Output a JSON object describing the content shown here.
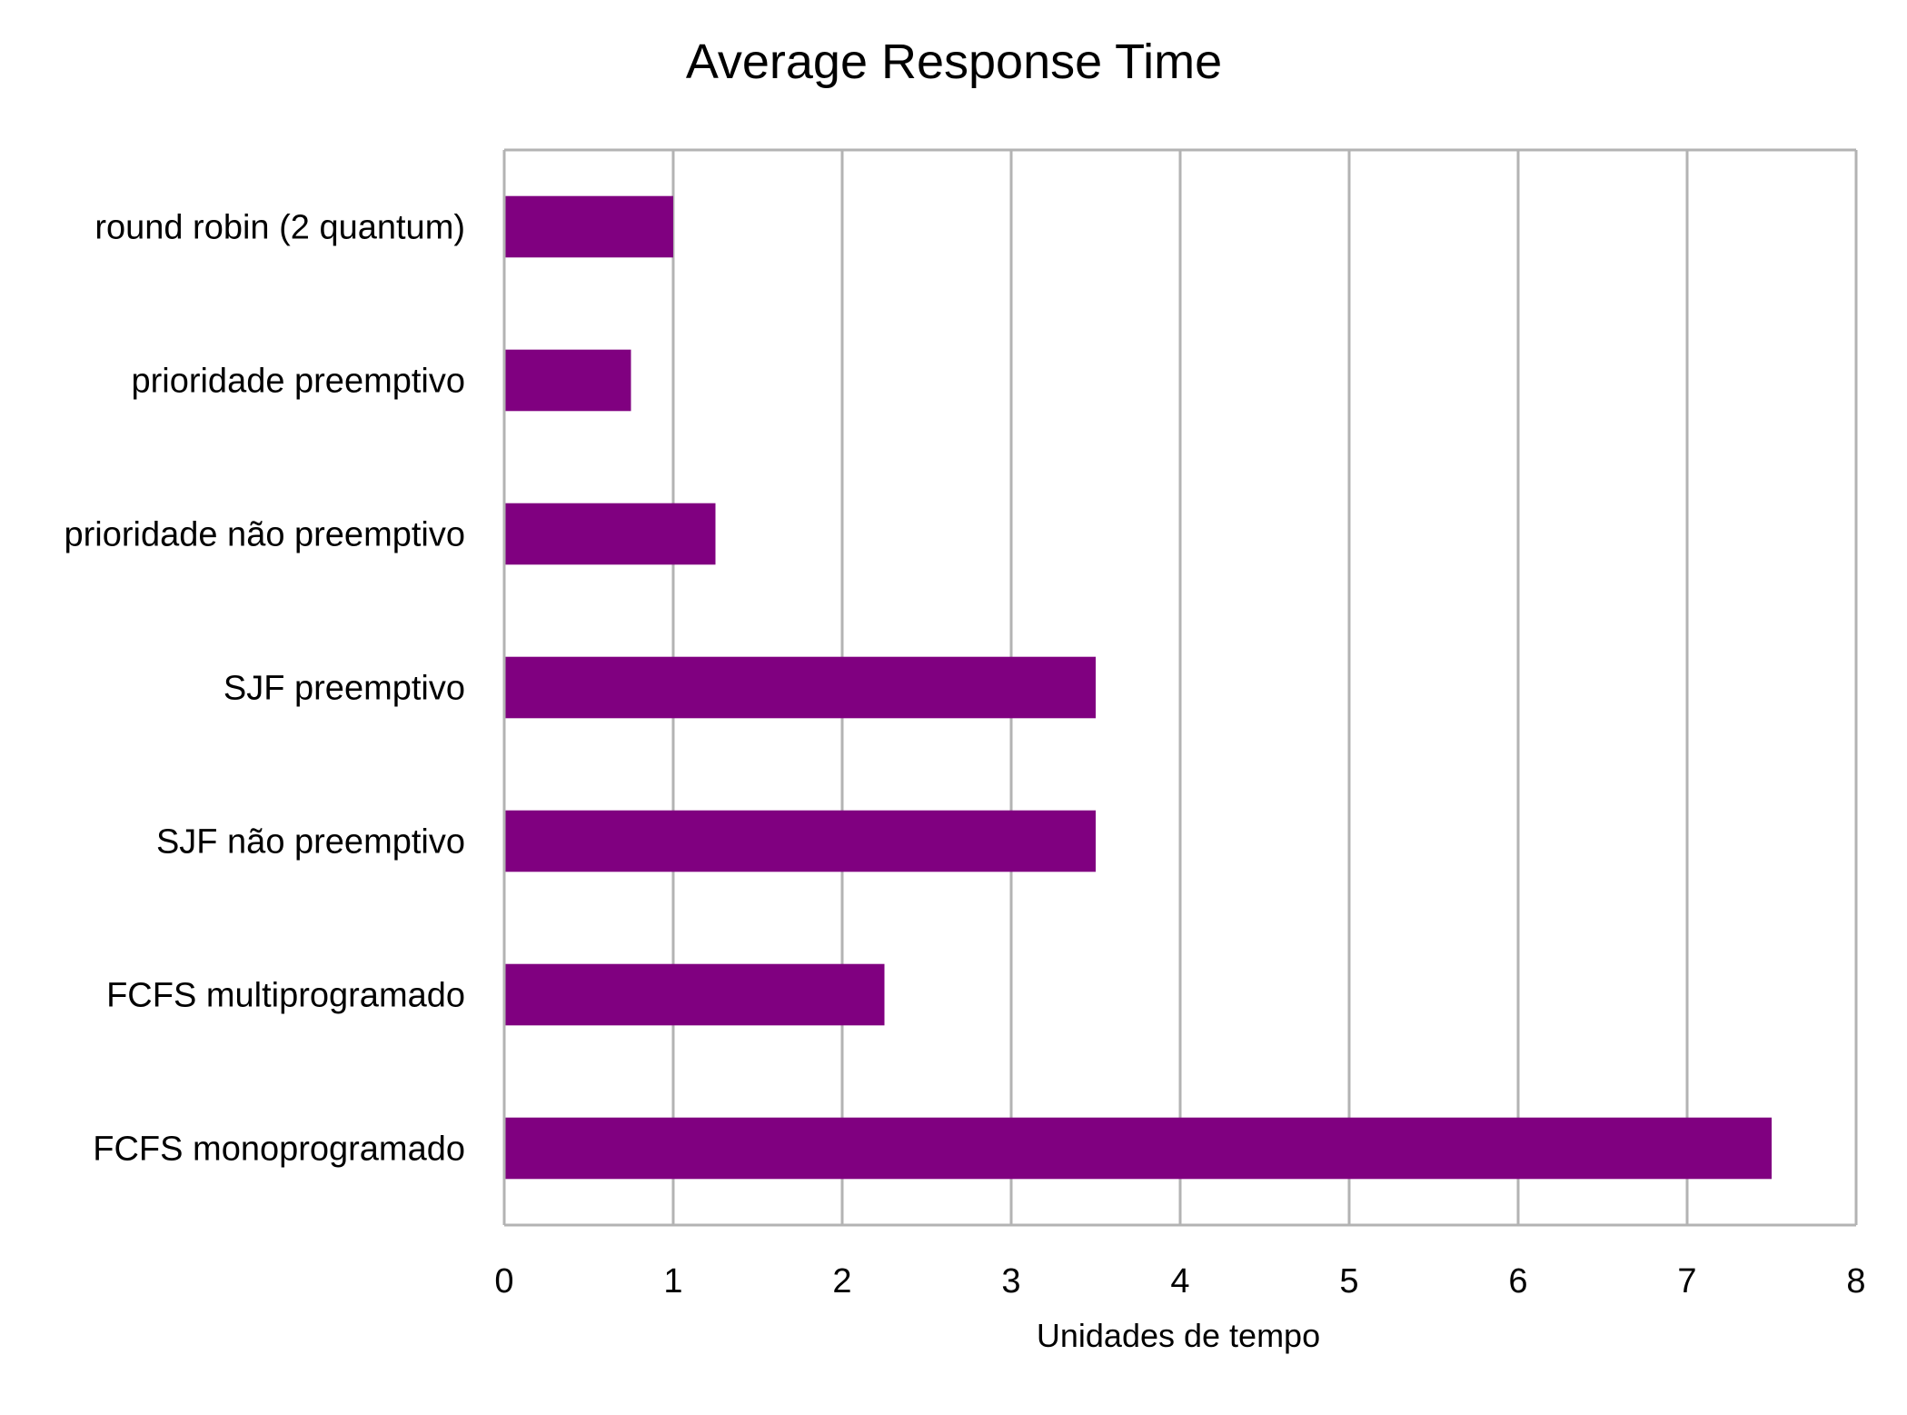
{
  "chart_data": {
    "type": "bar",
    "orientation": "horizontal",
    "title": "Average Response Time",
    "xlabel": "Unidades de tempo",
    "ylabel": "",
    "categories": [
      "round robin (2 quantum)",
      "prioridade preemptivo",
      "prioridade não preemptivo",
      "SJF preemptivo",
      "SJF não preemptivo",
      "FCFS multiprogramado",
      "FCFS monoprogramado"
    ],
    "values": [
      1,
      0.75,
      1.25,
      3.5,
      3.5,
      2.25,
      7.5
    ],
    "xlim": [
      0,
      8
    ],
    "xticks": [
      "0",
      "1",
      "2",
      "3",
      "4",
      "5",
      "6",
      "7",
      "8"
    ],
    "grid": "vertical",
    "legend": "none",
    "bar_color": "#800080",
    "grid_color": "#b3b3b3"
  }
}
